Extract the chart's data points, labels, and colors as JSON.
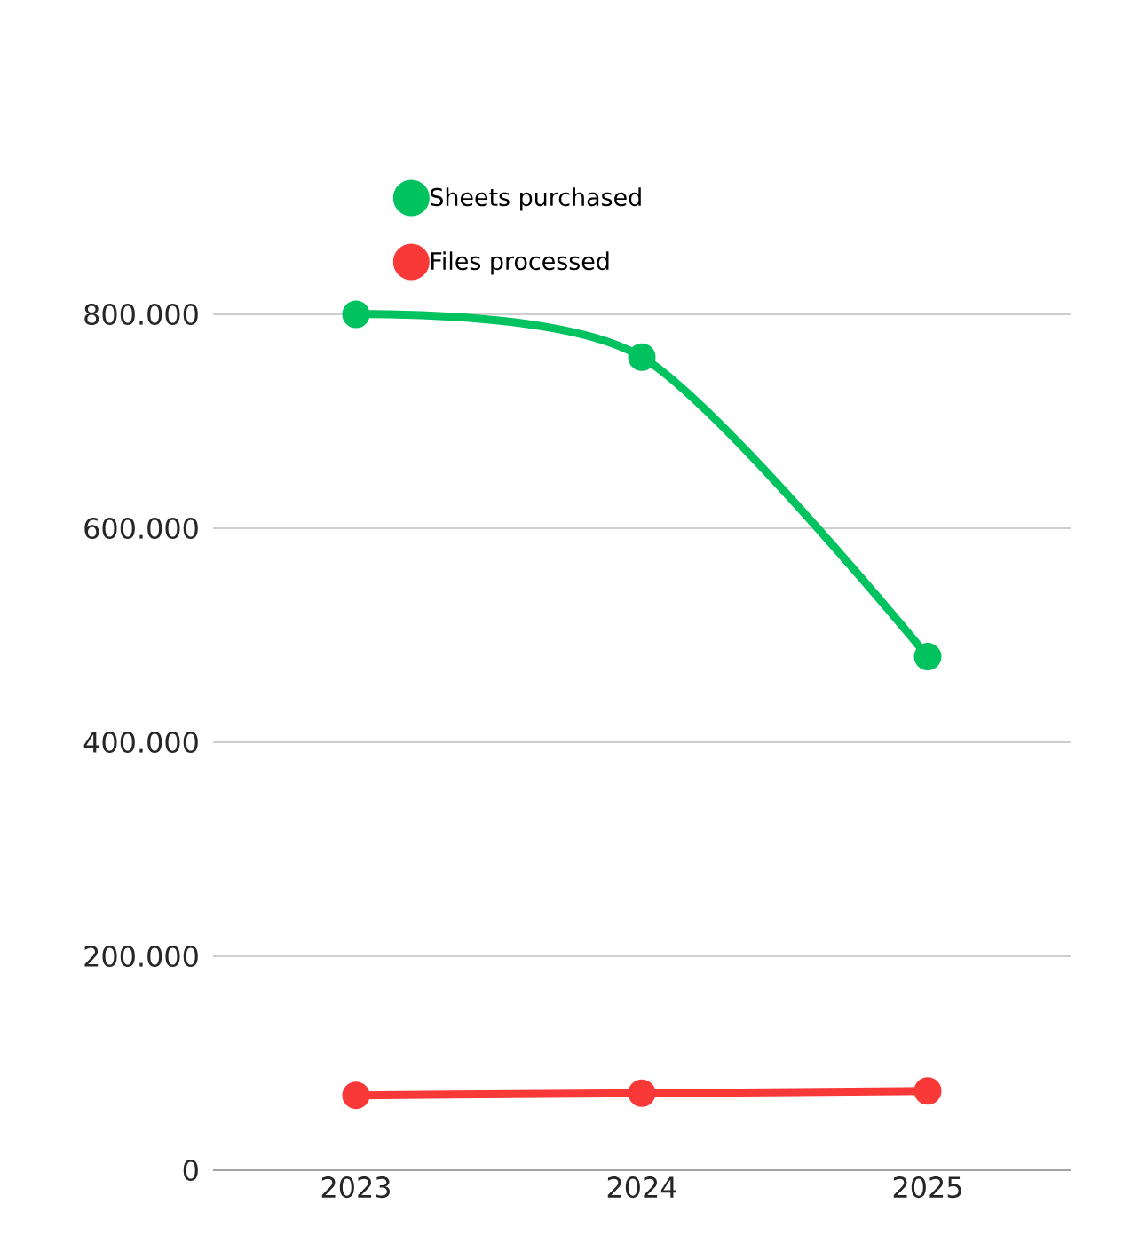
{
  "chart_data": {
    "type": "line",
    "categories": [
      "2023",
      "2024",
      "2025"
    ],
    "series": [
      {
        "name": "Sheets purchased",
        "color": "#00c25f",
        "values": [
          800000,
          760000,
          480000
        ]
      },
      {
        "name": "Files processed",
        "color": "#f93838",
        "values": [
          70000,
          72000,
          74000
        ]
      }
    ],
    "ylim": [
      0,
      800000
    ],
    "yticks": [
      {
        "value": 0,
        "label": "0"
      },
      {
        "value": 200000,
        "label": "200.000"
      },
      {
        "value": 400000,
        "label": "400.000"
      },
      {
        "value": 600000,
        "label": "600.000"
      },
      {
        "value": 800000,
        "label": "800.000"
      }
    ],
    "grid": "y",
    "legend": "top",
    "marker": "circle",
    "line_style": "solid"
  }
}
